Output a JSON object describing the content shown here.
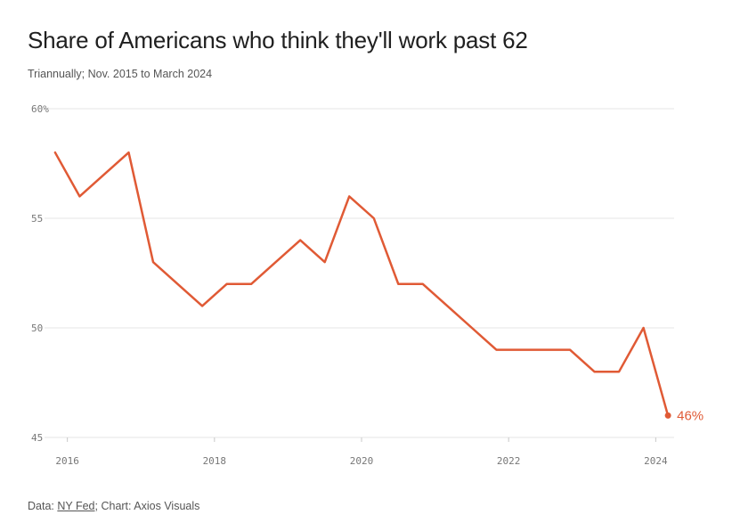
{
  "header": {
    "title": "Share of Americans who think they'll work past 62",
    "subtitle": "Triannually; Nov. 2015 to March 2024"
  },
  "footer": {
    "data_prefix": "Data: ",
    "source": "NY Fed",
    "credit": "; Chart: Axios Visuals"
  },
  "chart_data": {
    "type": "line",
    "title": "Share of Americans who think they'll work past 62",
    "subtitle": "Triannually; Nov. 2015 to March 2024",
    "x_tick_labels": [
      "2016",
      "2018",
      "2020",
      "2022",
      "2024"
    ],
    "x_ticks": [
      2016,
      2018,
      2020,
      2022,
      2024
    ],
    "y_tick_labels": [
      "60%",
      "55",
      "50",
      "45"
    ],
    "y_ticks": [
      60,
      55,
      50,
      45
    ],
    "ylim": [
      45,
      60
    ],
    "xlim": [
      2015.75,
      2024.25
    ],
    "grid": "horizontal",
    "color": "#e05a35",
    "end_label": "46%",
    "series": [
      {
        "x": [
          "2015-11",
          "2016-03",
          "2016-07",
          "2016-11",
          "2017-03",
          "2017-07",
          "2017-11",
          "2018-03",
          "2018-07",
          "2018-11",
          "2019-03",
          "2019-07",
          "2019-11",
          "2020-03",
          "2020-07",
          "2020-11",
          "2021-03",
          "2021-07",
          "2021-11",
          "2022-03",
          "2022-07",
          "2022-11",
          "2023-03",
          "2023-07",
          "2023-11",
          "2024-03"
        ],
        "values": [
          58,
          56,
          57,
          58,
          53,
          52,
          51,
          52,
          52,
          53,
          54,
          53,
          56,
          55,
          52,
          52,
          51,
          50,
          49,
          49,
          49,
          49,
          48,
          48,
          50,
          46
        ]
      }
    ]
  }
}
